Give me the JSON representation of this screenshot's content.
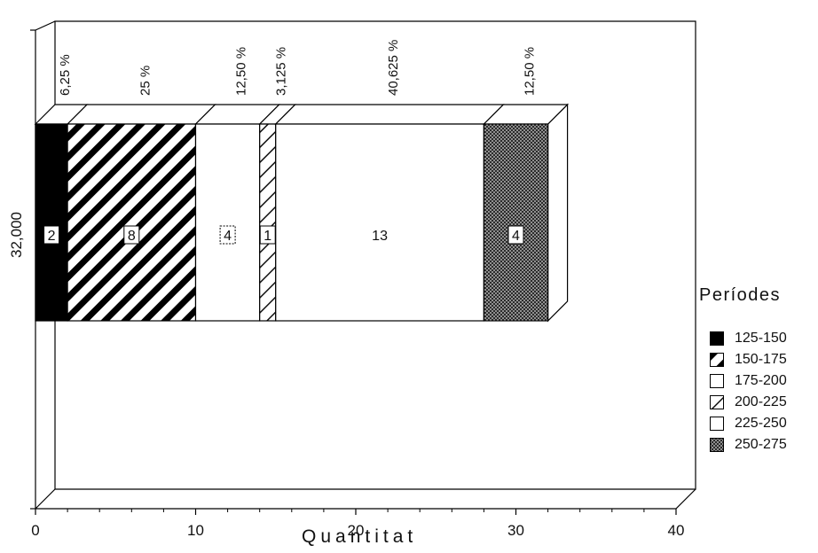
{
  "chart_data": {
    "type": "bar",
    "orientation": "horizontal",
    "stacked": true,
    "categories": [
      "32,000"
    ],
    "series": [
      {
        "name": "125-150",
        "values": [
          2
        ],
        "percent": "6,25 %",
        "pattern": "solid-black"
      },
      {
        "name": "150-175",
        "values": [
          8
        ],
        "percent": "25 %",
        "pattern": "diagonal-thick"
      },
      {
        "name": "175-200",
        "values": [
          4
        ],
        "percent": "12,50 %",
        "pattern": "white"
      },
      {
        "name": "200-225",
        "values": [
          1
        ],
        "percent": "3,125 %",
        "pattern": "diagonal-thin"
      },
      {
        "name": "225-250",
        "values": [
          13
        ],
        "percent": "40,625 %",
        "pattern": "white"
      },
      {
        "name": "250-275",
        "values": [
          4
        ],
        "percent": "12,50 %",
        "pattern": "dotted"
      }
    ],
    "xlabel": "Quantitat",
    "ylabel": "",
    "xlim": [
      0,
      40
    ],
    "xticks": [
      "0",
      "10",
      "20",
      "30",
      "40"
    ],
    "grid": false,
    "legend_title": "Períodes",
    "legend_position": "right"
  }
}
